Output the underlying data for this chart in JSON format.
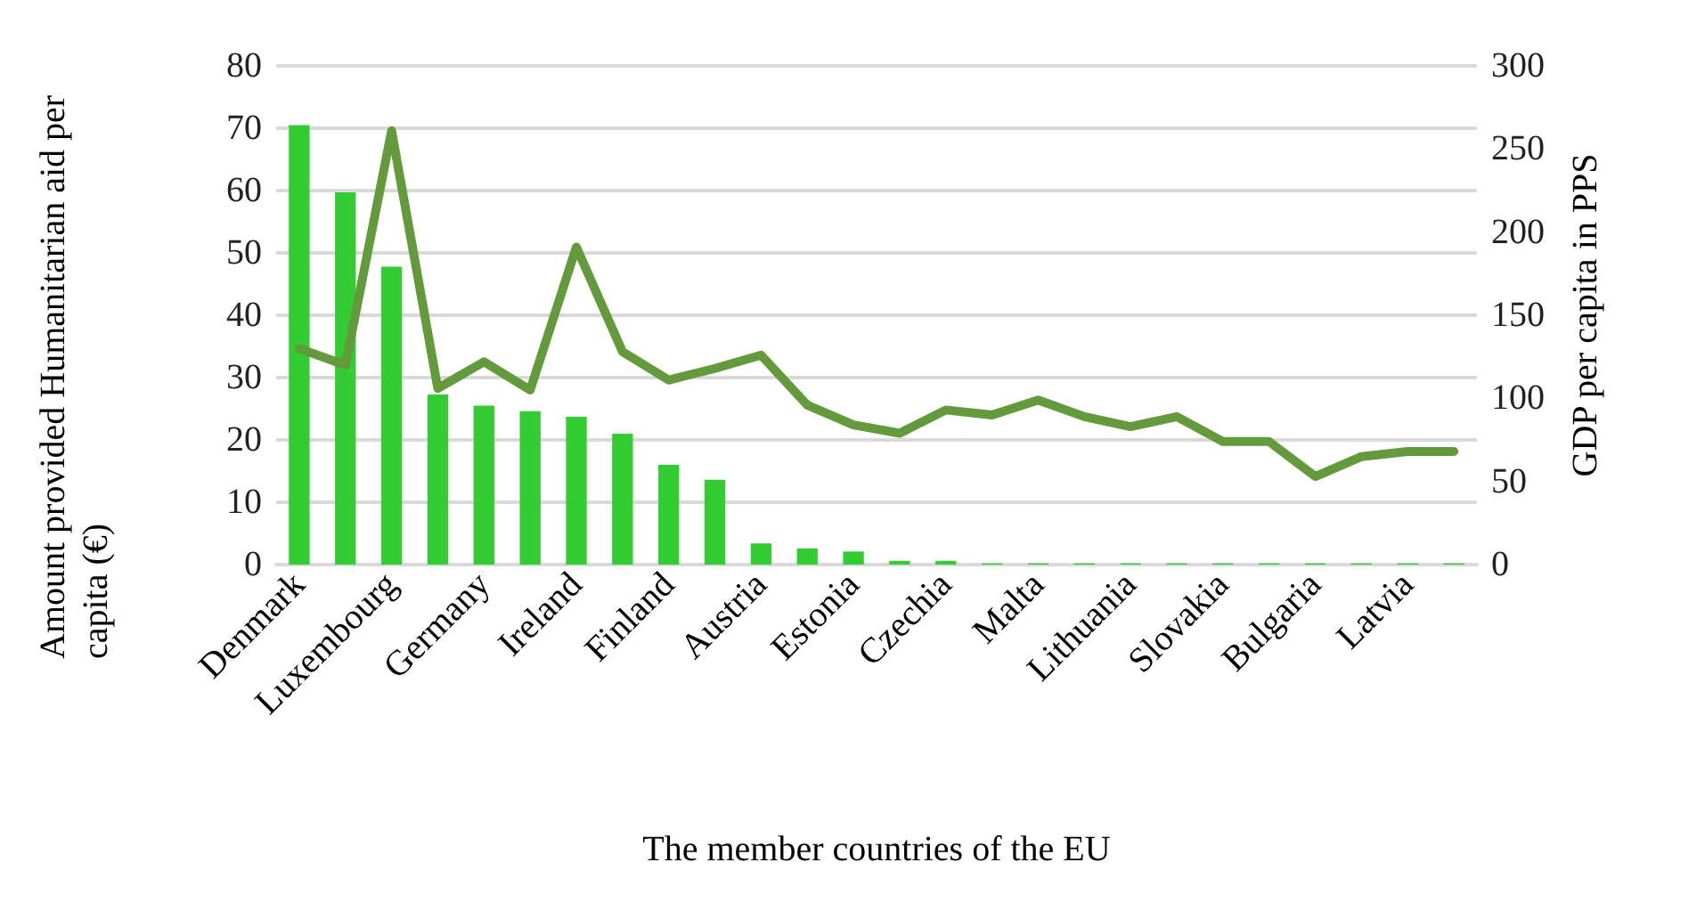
{
  "chart_data": {
    "type": "bar",
    "xlabel": "The member countries of the EU",
    "ylabel": "Amount provided Humanitarian aid per capita (€)",
    "y2label": "GDP per capita in PPS",
    "categories": [
      "Denmark",
      null,
      "Luxembourg",
      null,
      "Germany",
      null,
      "Ireland",
      null,
      "Finland",
      null,
      "Austria",
      null,
      "Estonia",
      null,
      "Czechia",
      null,
      "Malta",
      null,
      "Lithuania",
      null,
      "Slovakia",
      null,
      "Bulgaria",
      null,
      "Latvia",
      null
    ],
    "series": [
      {
        "color": "#33cc33",
        "values": [
          70.5,
          59.7,
          47.8,
          27.3,
          25.5,
          24.6,
          23.7,
          21,
          16,
          13.6,
          3.4,
          2.6,
          2.1,
          0.6,
          0.6,
          0.2,
          0.2,
          0.2,
          0.2,
          0.2,
          0.2,
          0.2,
          0.2,
          0.2,
          0.2,
          0.2
        ]
      },
      {
        "type": "line",
        "axis": "y2",
        "color": "#639a3c",
        "values": [
          130,
          120,
          261,
          106,
          122,
          105,
          191,
          128,
          111,
          118,
          126,
          96,
          84,
          79,
          93,
          90,
          99,
          89,
          83,
          89,
          74,
          74,
          53,
          65,
          68,
          68
        ]
      }
    ],
    "ylim": [
      0,
      80
    ],
    "yticks": [
      0,
      10,
      20,
      30,
      40,
      50,
      60,
      70,
      80
    ],
    "y2lim": [
      0,
      300
    ],
    "y2ticks": [
      0,
      50,
      100,
      150,
      200,
      250,
      300
    ],
    "grid": "y",
    "marker": "none",
    "line_style": "solid"
  }
}
